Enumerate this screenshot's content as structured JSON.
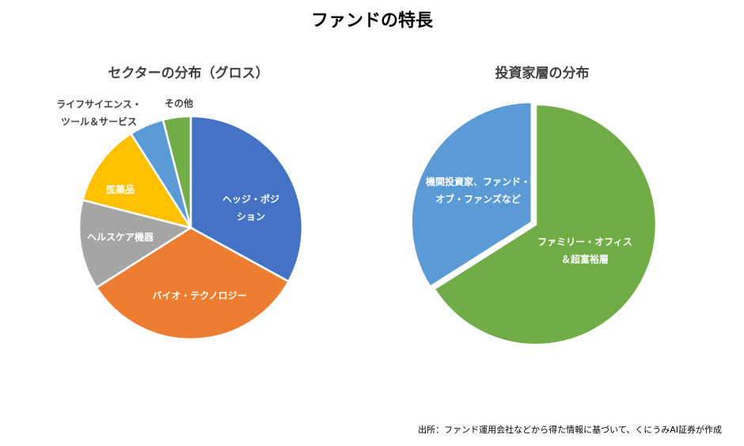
{
  "title": "ファンドの特長",
  "source": "出所：ファンド運用会社などから得た情報に基づいて、くにうみAI証券が作成",
  "chart_data": [
    {
      "type": "pie",
      "title": "セクターの分布（グロス）",
      "categories": [
        "ヘッジ・ポジ\nション",
        "バイオ・テクノロジー",
        "ヘルスケア機器",
        "医薬品",
        "ライフサイエンス・\nツール＆サービス",
        "その他"
      ],
      "values": [
        33,
        33,
        13,
        12,
        5,
        4
      ],
      "colors": [
        "#4472c4",
        "#ed7d31",
        "#a5a5a5",
        "#ffc000",
        "#5b9bd5",
        "#70ad47"
      ]
    },
    {
      "type": "pie",
      "title": "投資家層の分布",
      "categories": [
        "ファミリー・オフィス\n＆超富裕層",
        "機関投資家、ファンド・\nオブ・ファンズなど"
      ],
      "values": [
        66,
        34
      ],
      "colors": [
        "#70ad47",
        "#5b9bd5"
      ]
    }
  ]
}
